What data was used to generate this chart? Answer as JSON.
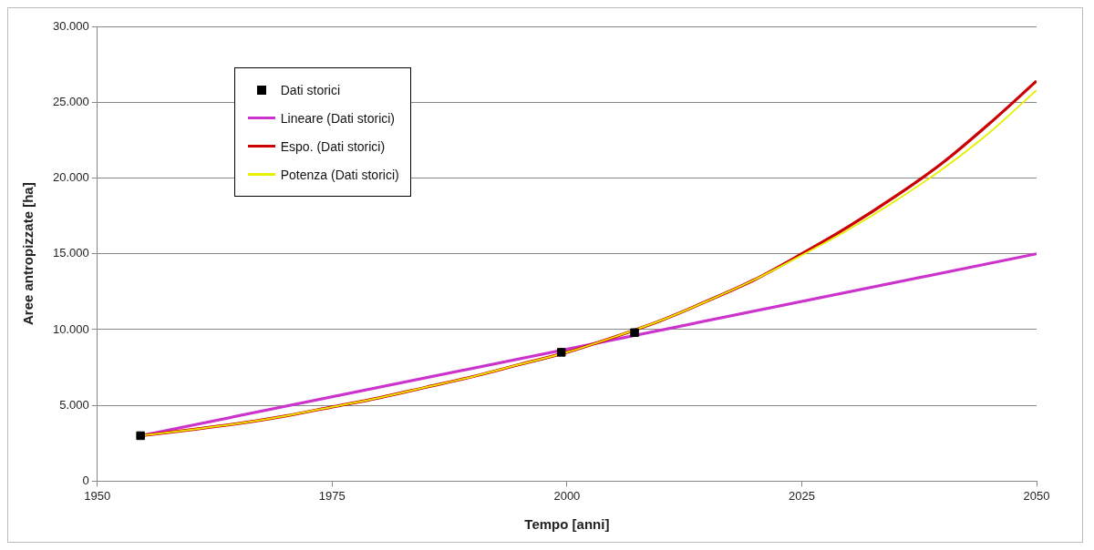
{
  "chart_data": {
    "type": "line",
    "xlabel": "Tempo [anni]",
    "ylabel": "Aree antropizzate [ha]",
    "xlim": [
      1950,
      2050
    ],
    "xticks": [
      1950,
      1975,
      2000,
      2025,
      2050
    ],
    "ylim": [
      0,
      30000
    ],
    "yticks": [
      0,
      {
        "value": 5000,
        "label": "5.000"
      },
      {
        "value": 10000,
        "label": "10.000"
      },
      {
        "value": 15000,
        "label": "15.000"
      },
      {
        "value": 20000,
        "label": "20.000"
      },
      {
        "value": 25000,
        "label": "25.000"
      },
      {
        "value": 30000,
        "label": "30.000"
      }
    ],
    "grid": "y",
    "legend": "top left",
    "series": [
      {
        "name": "Dati storici",
        "type": "scatter",
        "marker": "square",
        "color": "#000000",
        "x": [
          1954.6,
          1999.4,
          2007.2
        ],
        "values": [
          3000,
          8500,
          9800
        ]
      },
      {
        "name": "Lineare (Dati storici)",
        "type": "line",
        "color": "#cc33cc",
        "x": [
          1954.6,
          2050
        ],
        "values": [
          3000,
          15000
        ]
      },
      {
        "name": "Espo. (Dati storici)",
        "type": "line",
        "color": "#cc0000",
        "x": [
          1954.6,
          1960,
          1965,
          1970,
          1975,
          1980,
          1985,
          1990,
          1995,
          2000,
          2005,
          2010,
          2015,
          2020,
          2025,
          2030,
          2035,
          2040,
          2045,
          2050
        ],
        "values": [
          3000,
          3400,
          3800,
          4300,
          4900,
          5500,
          6200,
          6900,
          7700,
          8500,
          9500,
          10600,
          11900,
          13300,
          15000,
          16800,
          18800,
          21000,
          23600,
          26400
        ]
      },
      {
        "name": "Potenza (Dati storici)",
        "type": "line",
        "color": "#e6f000",
        "x": [
          1954.6,
          1960,
          1965,
          1970,
          1975,
          1980,
          1985,
          1990,
          1995,
          2000,
          2005,
          2010,
          2015,
          2020,
          2025,
          2030,
          2035,
          2040,
          2045,
          2050
        ],
        "values": [
          3000,
          3400,
          3800,
          4300,
          4900,
          5500,
          6200,
          6900,
          7700,
          8500,
          9500,
          10600,
          11900,
          13300,
          14900,
          16600,
          18500,
          20600,
          23000,
          25800
        ]
      }
    ]
  }
}
